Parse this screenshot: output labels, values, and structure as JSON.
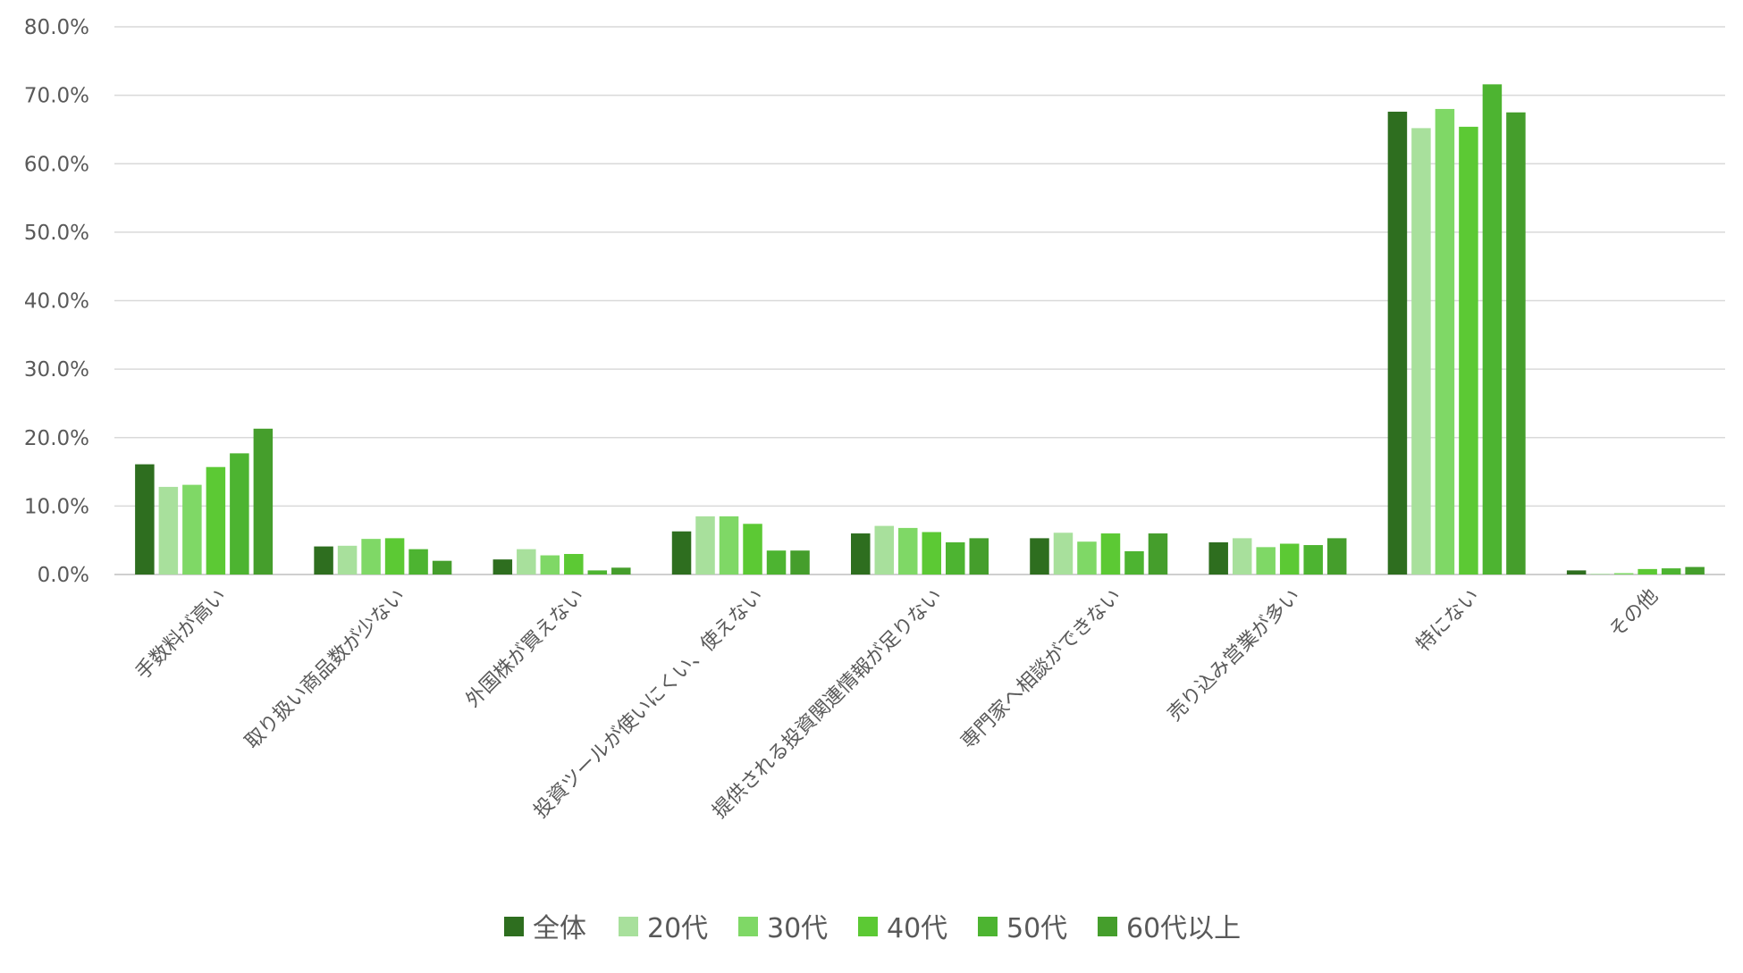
{
  "chart_data": {
    "type": "bar",
    "title": "",
    "xlabel": "",
    "ylabel": "",
    "ylim": [
      0,
      80
    ],
    "y_ticks": [
      "0.0%",
      "10.0%",
      "20.0%",
      "30.0%",
      "40.0%",
      "50.0%",
      "60.0%",
      "70.0%",
      "80.0%"
    ],
    "y_unit": "%",
    "grid": true,
    "legend_position": "bottom",
    "categories": [
      "手数料が高い",
      "取り扱い商品数が少ない",
      "外国株が買えない",
      "投資ツールが使いにくい、使えない",
      "提供される投資関連情報が足りない",
      "専門家へ相談ができない",
      "売り込み営業が多い",
      "特にない",
      "その他"
    ],
    "series": [
      {
        "name": "全体",
        "color": "#2e6e1f",
        "values": [
          16.1,
          4.1,
          2.2,
          6.3,
          6.0,
          5.3,
          4.7,
          67.6,
          0.6
        ]
      },
      {
        "name": "20代",
        "color": "#a8e09c",
        "values": [
          12.8,
          4.2,
          3.7,
          8.5,
          7.1,
          6.1,
          5.3,
          65.2,
          0.1
        ]
      },
      {
        "name": "30代",
        "color": "#7fd866",
        "values": [
          13.1,
          5.2,
          2.8,
          8.5,
          6.8,
          4.8,
          4.0,
          68.0,
          0.2
        ]
      },
      {
        "name": "40代",
        "color": "#5cc934",
        "values": [
          15.7,
          5.3,
          3.0,
          7.4,
          6.2,
          6.0,
          4.5,
          65.4,
          0.8
        ]
      },
      {
        "name": "50代",
        "color": "#4db431",
        "values": [
          17.7,
          3.7,
          0.6,
          3.5,
          4.7,
          3.4,
          4.3,
          71.6,
          0.9
        ]
      },
      {
        "name": "60代以上",
        "color": "#459e2c",
        "values": [
          21.3,
          2.0,
          1.0,
          3.5,
          5.3,
          6.0,
          5.3,
          67.5,
          1.1
        ]
      }
    ]
  }
}
